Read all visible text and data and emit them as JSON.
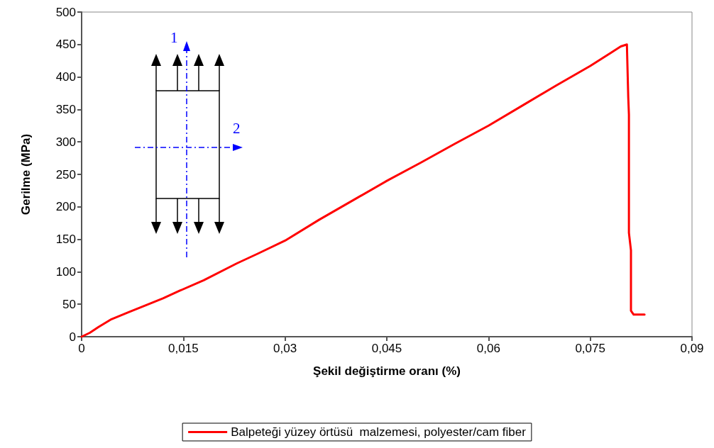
{
  "chart_data": {
    "type": "line",
    "xlabel": "Şekil değiştirme oranı (%)",
    "ylabel": "Gerilme (MPa)",
    "xlim": [
      0,
      0.09
    ],
    "xticks": [
      0,
      {
        "value": 0.015,
        "label": "0,015"
      },
      {
        "value": 0.03,
        "label": "0,03"
      },
      {
        "value": 0.045,
        "label": "0,045"
      },
      {
        "value": 0.06,
        "label": "0,06"
      },
      {
        "value": 0.075,
        "label": "0,075"
      },
      {
        "value": 0.09,
        "label": "0,09"
      }
    ],
    "ylim": [
      0,
      500
    ],
    "yticks": [
      0,
      50,
      100,
      150,
      200,
      250,
      300,
      350,
      400,
      450,
      500
    ],
    "grid": false,
    "legend": "bottom",
    "marker": "none",
    "line_style": "solid",
    "annotations": [
      "1",
      "2"
    ],
    "series": [
      {
        "name": "Balpeteği yüzey örtüsü  malzemesi, polyester/cam fiber",
        "color": "#ff0000",
        "x": [
          0,
          0.0012,
          0.0025,
          0.0044,
          0.007,
          0.0096,
          0.012,
          0.0145,
          0.018,
          0.0229,
          0.026,
          0.03,
          0.035,
          0.04,
          0.045,
          0.05,
          0.055,
          0.06,
          0.065,
          0.07,
          0.075,
          0.078,
          0.0795,
          0.0804,
          0.0806,
          0.0807,
          0.0807,
          0.081,
          0.081,
          0.0814,
          0.083
        ],
        "values": [
          0,
          6,
          15,
          27,
          38,
          49,
          59,
          71,
          87,
          113,
          128,
          148,
          180,
          210,
          240,
          268,
          297,
          325,
          356,
          387,
          417,
          437,
          447,
          450,
          369,
          342,
          160,
          133,
          40,
          34,
          34
        ]
      }
    ]
  }
}
